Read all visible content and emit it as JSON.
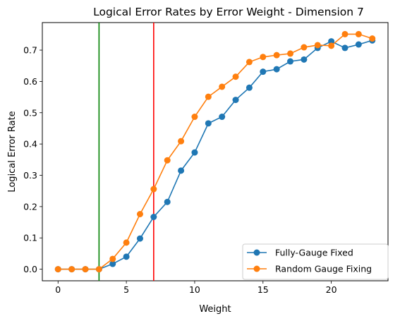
{
  "chart_data": {
    "type": "line",
    "title": "Logical Error Rates by Error Weight - Dimension 7",
    "xlabel": "Weight",
    "ylabel": "Logical Error Rate",
    "xlim": [
      -1.15,
      24.15
    ],
    "ylim": [
      -0.037,
      0.788
    ],
    "xticks": [
      0,
      5,
      10,
      15,
      20
    ],
    "yticks": [
      0.0,
      0.1,
      0.2,
      0.3,
      0.4,
      0.5,
      0.6,
      0.7
    ],
    "grid": false,
    "legend_position": "lower-right",
    "x": [
      0,
      1,
      2,
      3,
      4,
      5,
      6,
      7,
      8,
      9,
      10,
      11,
      12,
      13,
      14,
      15,
      16,
      17,
      18,
      19,
      20,
      21,
      22,
      23
    ],
    "series": [
      {
        "name": "Fully-Gauge Fixed",
        "color": "#1f77b4",
        "marker": "circle",
        "values": [
          0.0,
          0.0,
          0.0,
          0.0,
          0.017,
          0.04,
          0.098,
          0.167,
          0.215,
          0.315,
          0.373,
          0.466,
          0.487,
          0.541,
          0.58,
          0.631,
          0.639,
          0.664,
          0.67,
          0.707,
          0.728,
          0.707,
          0.718,
          0.731
        ]
      },
      {
        "name": "Random Gauge Fixing",
        "color": "#ff7f0e",
        "marker": "circle",
        "values": [
          0.0,
          0.0,
          0.0,
          0.0,
          0.033,
          0.085,
          0.176,
          0.256,
          0.348,
          0.409,
          0.487,
          0.551,
          0.583,
          0.615,
          0.662,
          0.678,
          0.684,
          0.689,
          0.709,
          0.716,
          0.714,
          0.751,
          0.751,
          0.737
        ]
      }
    ],
    "vlines": [
      {
        "x": 3,
        "color": "#008000"
      },
      {
        "x": 7,
        "color": "#ff0000"
      }
    ]
  }
}
